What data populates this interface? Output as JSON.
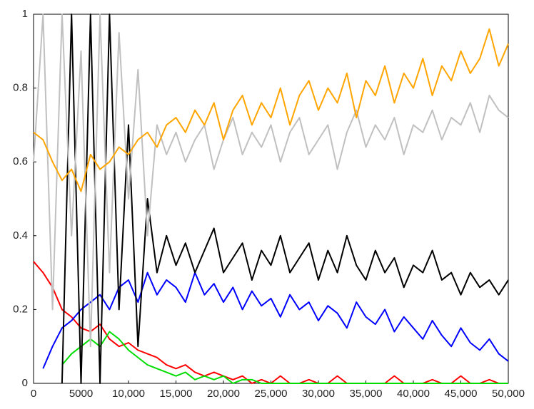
{
  "chart_data": {
    "type": "line",
    "x": [
      0,
      1000,
      2000,
      3000,
      4000,
      5000,
      6000,
      7000,
      8000,
      9000,
      10000,
      11000,
      12000,
      13000,
      14000,
      15000,
      16000,
      17000,
      18000,
      19000,
      20000,
      21000,
      22000,
      23000,
      24000,
      25000,
      26000,
      27000,
      28000,
      29000,
      30000,
      31000,
      32000,
      33000,
      34000,
      35000,
      36000,
      37000,
      38000,
      39000,
      40000,
      41000,
      42000,
      43000,
      44000,
      45000,
      46000,
      47000,
      48000,
      49000,
      50000
    ],
    "series": [
      {
        "color": "#ff0000",
        "values": [
          0.33,
          0.3,
          0.26,
          0.2,
          0.18,
          0.15,
          0.14,
          0.16,
          0.12,
          0.1,
          0.11,
          0.09,
          0.08,
          0.07,
          0.05,
          0.04,
          0.05,
          0.03,
          0.02,
          0.03,
          0.02,
          0.01,
          0.02,
          0,
          0.01,
          0,
          0.02,
          0,
          0,
          0.01,
          0,
          0,
          0.02,
          0,
          0,
          0,
          0,
          0,
          0.02,
          0,
          0,
          0,
          0.01,
          0,
          0,
          0.02,
          0,
          0,
          0.01,
          0,
          0
        ]
      },
      {
        "color": "#00dd00",
        "values": [
          null,
          null,
          null,
          0.05,
          0.08,
          0.1,
          0.12,
          0.1,
          0.14,
          0.12,
          0.09,
          0.07,
          0.05,
          0.04,
          0.03,
          0.02,
          0.03,
          0.01,
          0.02,
          0.01,
          0.02,
          0,
          0.01,
          0.01,
          0,
          0,
          0,
          0,
          0,
          0,
          0,
          0,
          0,
          0,
          0,
          0,
          0,
          0,
          0,
          0,
          0,
          0,
          0,
          0,
          0,
          0,
          0,
          0,
          0,
          0,
          0
        ]
      },
      {
        "color": "#0000ff",
        "values": [
          null,
          0.04,
          0.1,
          0.15,
          0.17,
          0.2,
          0.22,
          0.24,
          0.2,
          0.26,
          0.28,
          0.22,
          0.3,
          0.24,
          0.28,
          0.26,
          0.22,
          0.3,
          0.24,
          0.27,
          0.22,
          0.26,
          0.2,
          0.25,
          0.21,
          0.23,
          0.18,
          0.24,
          0.2,
          0.22,
          0.17,
          0.21,
          0.19,
          0.15,
          0.22,
          0.18,
          0.16,
          0.2,
          0.14,
          0.18,
          0.15,
          0.12,
          0.17,
          0.13,
          0.1,
          0.15,
          0.11,
          0.09,
          0.12,
          0.08,
          0.06
        ]
      },
      {
        "color": "#000000",
        "values": [
          null,
          null,
          null,
          0,
          1,
          0,
          1,
          0,
          1,
          0.2,
          0.7,
          0.1,
          0.5,
          0.3,
          0.4,
          0.32,
          0.38,
          0.3,
          0.36,
          0.42,
          0.3,
          0.34,
          0.38,
          0.28,
          0.36,
          0.32,
          0.4,
          0.3,
          0.34,
          0.38,
          0.28,
          0.36,
          0.3,
          0.4,
          0.32,
          0.28,
          0.36,
          0.3,
          0.34,
          0.26,
          0.32,
          0.3,
          0.36,
          0.28,
          0.3,
          0.24,
          0.3,
          0.26,
          0.28,
          0.24,
          0.28
        ]
      },
      {
        "color": "#c0c0c0",
        "values": [
          0.6,
          1,
          0.2,
          1,
          0.4,
          0.9,
          0.1,
          1,
          0.3,
          0.95,
          0.5,
          0.85,
          0.4,
          0.7,
          0.62,
          0.68,
          0.6,
          0.66,
          0.7,
          0.58,
          0.66,
          0.72,
          0.62,
          0.68,
          0.64,
          0.7,
          0.6,
          0.68,
          0.72,
          0.62,
          0.66,
          0.7,
          0.58,
          0.68,
          0.74,
          0.64,
          0.7,
          0.66,
          0.72,
          0.62,
          0.7,
          0.68,
          0.74,
          0.66,
          0.72,
          0.7,
          0.76,
          0.68,
          0.78,
          0.74,
          0.72
        ]
      },
      {
        "color": "#ffa500",
        "values": [
          0.68,
          0.66,
          0.6,
          0.55,
          0.58,
          0.52,
          0.62,
          0.58,
          0.6,
          0.64,
          0.62,
          0.66,
          0.68,
          0.64,
          0.7,
          0.72,
          0.68,
          0.74,
          0.7,
          0.76,
          0.66,
          0.74,
          0.78,
          0.7,
          0.76,
          0.72,
          0.8,
          0.7,
          0.78,
          0.82,
          0.74,
          0.8,
          0.76,
          0.84,
          0.72,
          0.82,
          0.78,
          0.86,
          0.76,
          0.84,
          0.8,
          0.88,
          0.78,
          0.86,
          0.82,
          0.9,
          0.84,
          0.88,
          0.96,
          0.86,
          0.92
        ]
      }
    ],
    "xlim": [
      0,
      50000
    ],
    "xticks": [
      0,
      5000,
      {
        "value": 10000,
        "label": "10,000"
      },
      {
        "value": 15000,
        "label": "15,000"
      },
      {
        "value": 20000,
        "label": "20,000"
      },
      {
        "value": 25000,
        "label": "25,000"
      },
      {
        "value": 30000,
        "label": "30,000"
      },
      {
        "value": 35000,
        "label": "35,000"
      },
      {
        "value": 40000,
        "label": "40,000"
      },
      {
        "value": 45000,
        "label": "45,000"
      },
      {
        "value": 50000,
        "label": "50,000"
      }
    ],
    "ylim": [
      0,
      1
    ],
    "yticks": [
      0,
      0.2,
      0.4,
      0.6,
      0.8,
      1
    ],
    "grid": false
  }
}
